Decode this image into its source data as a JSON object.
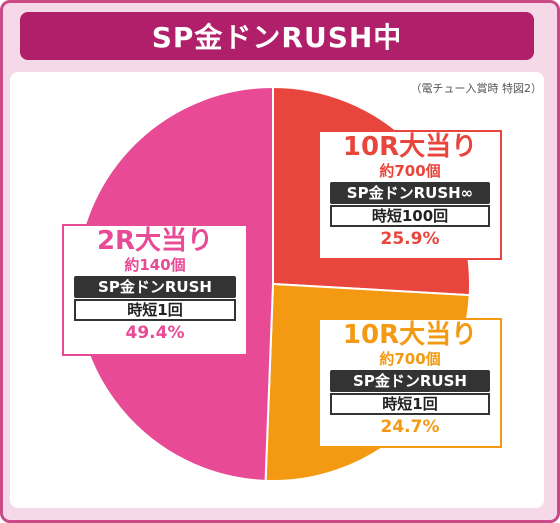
{
  "title": "SP金ドンRUSH中",
  "note": "（電チュー入賞時 特図2）",
  "colors": {
    "frame": "#c94a86",
    "title_bg": "#b01f69",
    "frame_bg": "#f6d9e8"
  },
  "chart_data": {
    "type": "pie",
    "slices": [
      {
        "label": "10R大当り",
        "sub": "約700個",
        "mode": "SP金ドンRUSH∞",
        "jitan": "時短100回",
        "value": 25.9,
        "value_label": "25.9%",
        "color": "#e8463c"
      },
      {
        "label": "10R大当り",
        "sub": "約700個",
        "mode": "SP金ドンRUSH",
        "jitan": "時短1回",
        "value": 24.7,
        "value_label": "24.7%",
        "color": "#f39a12"
      },
      {
        "label": "2R大当り",
        "sub": "約140個",
        "mode": "SP金ドンRUSH",
        "jitan": "時短1回",
        "value": 49.4,
        "value_label": "49.4%",
        "color": "#e94a96"
      }
    ]
  }
}
